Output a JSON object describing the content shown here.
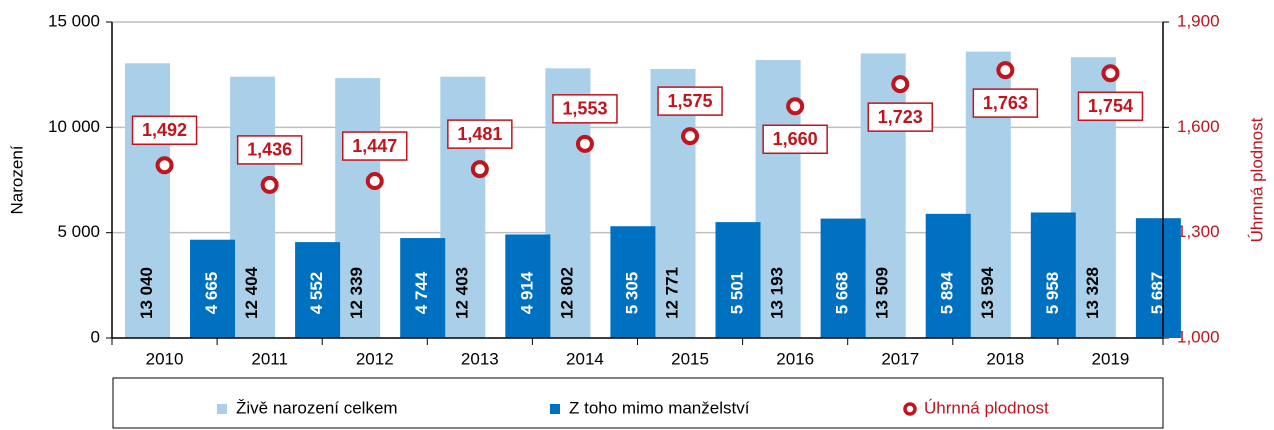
{
  "chart_data": {
    "type": "bar",
    "categories": [
      "2010",
      "2011",
      "2012",
      "2013",
      "2014",
      "2015",
      "2016",
      "2017",
      "2018",
      "2019"
    ],
    "series": [
      {
        "name": "Živě narození celkem",
        "color": "#a9cfe9",
        "values": [
          13040,
          12404,
          12339,
          12403,
          12802,
          12771,
          13193,
          13509,
          13594,
          13328
        ],
        "value_labels": [
          "13 040",
          "12 404",
          "12 339",
          "12 403",
          "12 802",
          "12 771",
          "13 193",
          "13 509",
          "13 594",
          "13 328"
        ]
      },
      {
        "name": "Z toho mimo manželství",
        "color": "#0070c0",
        "values": [
          4665,
          4552,
          4744,
          4914,
          5305,
          5501,
          5668,
          5894,
          5958,
          5687
        ],
        "value_labels": [
          "4 665",
          "4 552",
          "4 744",
          "4 914",
          "5 305",
          "5 501",
          "5 668",
          "5 894",
          "5 958",
          "5 687"
        ]
      },
      {
        "name": "Úhrnná plodnost",
        "color": "#c0141e",
        "axis": "y2",
        "type": "scatter",
        "values": [
          1.492,
          1.436,
          1.447,
          1.481,
          1.553,
          1.575,
          1.66,
          1.723,
          1.763,
          1.754
        ],
        "value_labels": [
          "1,492",
          "1,436",
          "1,447",
          "1,481",
          "1,553",
          "1,575",
          "1,660",
          "1,723",
          "1,763",
          "1,754"
        ]
      }
    ],
    "ylabel": "Narození",
    "y2label": "Úhrnná plodnost",
    "ylim": [
      0,
      15000
    ],
    "yticks": [
      0,
      {
        "value": 5000,
        "label": "5 000"
      },
      {
        "value": 10000,
        "label": "10 000"
      },
      {
        "value": 15000,
        "label": "15 000"
      }
    ],
    "y2lim": [
      1.0,
      1.9
    ],
    "y2ticks": [
      {
        "value": 1.0,
        "label": "1,000"
      },
      {
        "value": 1.3,
        "label": "1,300"
      },
      {
        "value": 1.6,
        "label": "1,600"
      },
      {
        "value": 1.9,
        "label": "1,900"
      }
    ],
    "grid": true,
    "legend": "bottom"
  }
}
